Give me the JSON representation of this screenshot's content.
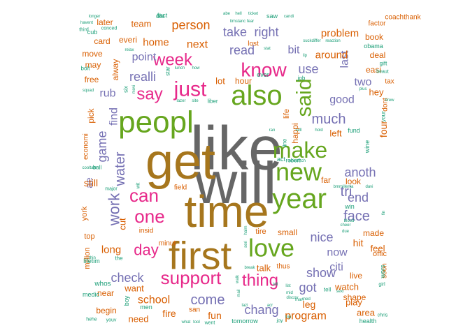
{
  "palette": {
    "gray": "#666666",
    "olive": "#a6761d",
    "green": "#66a61e",
    "magenta": "#e7298a",
    "purple": "#7570b3",
    "orange": "#d95f02",
    "teal": "#1b9e77"
  },
  "words": [
    {
      "text": "like",
      "color": "gray",
      "weight": 100
    },
    {
      "text": "will",
      "color": "gray",
      "weight": 98
    },
    {
      "text": "get",
      "color": "olive",
      "weight": 90
    },
    {
      "text": "time",
      "color": "olive",
      "weight": 86
    },
    {
      "text": "first",
      "color": "olive",
      "weight": 80
    },
    {
      "text": "peopl",
      "color": "green",
      "weight": 62
    },
    {
      "text": "year",
      "color": "green",
      "weight": 56
    },
    {
      "text": "also",
      "color": "green",
      "weight": 54
    },
    {
      "text": "new",
      "color": "green",
      "weight": 50
    },
    {
      "text": "love",
      "color": "green",
      "weight": 50
    },
    {
      "text": "make",
      "color": "green",
      "weight": 46
    },
    {
      "text": "said",
      "color": "green",
      "weight": 46
    },
    {
      "text": "just",
      "color": "magenta",
      "weight": 44
    },
    {
      "text": "know",
      "color": "magenta",
      "weight": 40
    },
    {
      "text": "support",
      "color": "magenta",
      "weight": 38
    },
    {
      "text": "can",
      "color": "magenta",
      "weight": 36
    },
    {
      "text": "one",
      "color": "magenta",
      "weight": 36
    },
    {
      "text": "thing",
      "color": "magenta",
      "weight": 34
    },
    {
      "text": "week",
      "color": "magenta",
      "weight": 32
    },
    {
      "text": "say",
      "color": "magenta",
      "weight": 32
    },
    {
      "text": "day",
      "color": "magenta",
      "weight": 28
    },
    {
      "text": "work",
      "color": "purple",
      "weight": 30
    },
    {
      "text": "water",
      "color": "purple",
      "weight": 26
    },
    {
      "text": "come",
      "color": "purple",
      "weight": 26
    },
    {
      "text": "face",
      "color": "purple",
      "weight": 26
    },
    {
      "text": "much",
      "color": "purple",
      "weight": 24
    },
    {
      "text": "check",
      "color": "purple",
      "weight": 24
    },
    {
      "text": "nice",
      "color": "purple",
      "weight": 24
    },
    {
      "text": "show",
      "color": "purple",
      "weight": 24
    },
    {
      "text": "anoth",
      "color": "purple",
      "weight": 24
    },
    {
      "text": "chang",
      "color": "purple",
      "weight": 22
    },
    {
      "text": "realli",
      "color": "purple",
      "weight": 22
    },
    {
      "text": "take",
      "color": "purple",
      "weight": 22
    },
    {
      "text": "right",
      "color": "purple",
      "weight": 22
    },
    {
      "text": "end",
      "color": "purple",
      "weight": 22
    },
    {
      "text": "read",
      "color": "purple",
      "weight": 22
    },
    {
      "text": "game",
      "color": "purple",
      "weight": 22
    },
    {
      "text": "tri",
      "color": "purple",
      "weight": 24
    },
    {
      "text": "got",
      "color": "purple",
      "weight": 22
    },
    {
      "text": "use",
      "color": "purple",
      "weight": 22
    },
    {
      "text": "good",
      "color": "purple",
      "weight": 22
    },
    {
      "text": "last",
      "color": "purple",
      "weight": 22
    },
    {
      "text": "point",
      "color": "purple",
      "weight": 20
    },
    {
      "text": "rub",
      "color": "purple",
      "weight": 20
    },
    {
      "text": "two",
      "color": "purple",
      "weight": 20
    },
    {
      "text": "find",
      "color": "purple",
      "weight": 18
    },
    {
      "text": "bit",
      "color": "purple",
      "weight": 18
    },
    {
      "text": "now",
      "color": "purple",
      "weight": 20
    },
    {
      "text": "citi",
      "color": "purple",
      "weight": 18
    },
    {
      "text": "ae",
      "color": "purple",
      "weight": 18
    },
    {
      "text": "person",
      "color": "orange",
      "weight": 22
    },
    {
      "text": "school",
      "color": "orange",
      "weight": 20
    },
    {
      "text": "program",
      "color": "orange",
      "weight": 20
    },
    {
      "text": "problem",
      "color": "orange",
      "weight": 18
    },
    {
      "text": "next",
      "color": "orange",
      "weight": 20
    },
    {
      "text": "home",
      "color": "orange",
      "weight": 20
    },
    {
      "text": "around",
      "color": "orange",
      "weight": 18
    },
    {
      "text": "long",
      "color": "orange",
      "weight": 18
    },
    {
      "text": "four",
      "color": "orange",
      "weight": 16
    },
    {
      "text": "fire",
      "color": "orange",
      "weight": 16
    },
    {
      "text": "fun",
      "color": "orange",
      "weight": 16
    },
    {
      "text": "leg",
      "color": "orange",
      "weight": 16
    },
    {
      "text": "hit",
      "color": "orange",
      "weight": 16
    },
    {
      "text": "still",
      "color": "orange",
      "weight": 16
    },
    {
      "text": "talk",
      "color": "orange",
      "weight": 16
    },
    {
      "text": "feel",
      "color": "orange",
      "weight": 16
    },
    {
      "text": "watch",
      "color": "orange",
      "weight": 14
    },
    {
      "text": "play",
      "color": "orange",
      "weight": 14
    },
    {
      "text": "area",
      "color": "orange",
      "weight": 14
    },
    {
      "text": "hey",
      "color": "orange",
      "weight": 14
    },
    {
      "text": "left",
      "color": "orange",
      "weight": 14
    },
    {
      "text": "cut",
      "color": "orange",
      "weight": 14
    },
    {
      "text": "want",
      "color": "orange",
      "weight": 14
    },
    {
      "text": "need",
      "color": "orange",
      "weight": 14
    },
    {
      "text": "team",
      "color": "orange",
      "weight": 14
    },
    {
      "text": "lot",
      "color": "orange",
      "weight": 14
    },
    {
      "text": "made",
      "color": "orange",
      "weight": 14
    },
    {
      "text": "shape",
      "color": "orange",
      "weight": 14
    },
    {
      "text": "look",
      "color": "orange",
      "weight": 14
    },
    {
      "text": "later",
      "color": "orange",
      "weight": 13
    },
    {
      "text": "begin",
      "color": "orange",
      "weight": 13
    },
    {
      "text": "near",
      "color": "orange",
      "weight": 13
    },
    {
      "text": "live",
      "color": "orange",
      "weight": 13
    },
    {
      "text": "book",
      "color": "orange",
      "weight": 13
    },
    {
      "text": "small",
      "color": "orange",
      "weight": 13
    },
    {
      "text": "free",
      "color": "orange",
      "weight": 12
    },
    {
      "text": "alway",
      "color": "orange",
      "weight": 12
    },
    {
      "text": "may",
      "color": "orange",
      "weight": 12
    },
    {
      "text": "move",
      "color": "orange",
      "weight": 12
    },
    {
      "text": "pick",
      "color": "orange",
      "weight": 12
    },
    {
      "text": "card",
      "color": "orange",
      "weight": 12
    },
    {
      "text": "everi",
      "color": "orange",
      "weight": 12
    },
    {
      "text": "deal",
      "color": "orange",
      "weight": 12
    },
    {
      "text": "easi",
      "color": "orange",
      "weight": 12
    },
    {
      "text": "happi",
      "color": "orange",
      "weight": 12
    },
    {
      "text": "far",
      "color": "orange",
      "weight": 12
    },
    {
      "text": "hour",
      "color": "orange",
      "weight": 12
    },
    {
      "text": "york",
      "color": "orange",
      "weight": 12
    },
    {
      "text": "top",
      "color": "orange",
      "weight": 12
    },
    {
      "text": "million",
      "color": "orange",
      "weight": 12
    },
    {
      "text": "offic",
      "color": "orange",
      "weight": 12
    },
    {
      "text": "tire",
      "color": "orange",
      "weight": 12
    },
    {
      "text": "life",
      "color": "orange",
      "weight": 12
    },
    {
      "text": "dont",
      "color": "orange",
      "weight": 11
    },
    {
      "text": "soon",
      "color": "orange",
      "weight": 11
    },
    {
      "text": "factor",
      "color": "orange",
      "weight": 11
    },
    {
      "text": "coachthank",
      "color": "orange",
      "weight": 11
    },
    {
      "text": "insid",
      "color": "orange",
      "weight": 11
    },
    {
      "text": "minut",
      "color": "orange",
      "weight": 11
    },
    {
      "text": "field",
      "color": "orange",
      "weight": 11
    },
    {
      "text": "lost",
      "color": "orange",
      "weight": 11
    },
    {
      "text": "thus",
      "color": "orange",
      "weight": 11
    },
    {
      "text": "tax",
      "color": "orange",
      "weight": 11
    },
    {
      "text": "san",
      "color": "orange",
      "weight": 11
    },
    {
      "text": "economi",
      "color": "orange",
      "weight": 11
    },
    {
      "text": "whos",
      "color": "teal",
      "weight": 11
    },
    {
      "text": "wors",
      "color": "teal",
      "weight": 10
    },
    {
      "text": "medic",
      "color": "teal",
      "weight": 9
    },
    {
      "text": "health",
      "color": "teal",
      "weight": 9
    },
    {
      "text": "tomorrow",
      "color": "teal",
      "weight": 9
    },
    {
      "text": "boy",
      "color": "teal",
      "weight": 9
    },
    {
      "text": "men",
      "color": "teal",
      "weight": 9
    },
    {
      "text": "fund",
      "color": "teal",
      "weight": 9
    },
    {
      "text": "wine",
      "color": "teal",
      "weight": 9
    },
    {
      "text": "obama",
      "color": "teal",
      "weight": 9
    },
    {
      "text": "cub",
      "color": "teal",
      "weight": 9
    },
    {
      "text": "lifetim",
      "color": "teal",
      "weight": 9
    },
    {
      "text": "saw",
      "color": "teal",
      "weight": 9
    },
    {
      "text": "die",
      "color": "teal",
      "weight": 9
    },
    {
      "text": "fact",
      "color": "teal",
      "weight": 9
    },
    {
      "text": "ever",
      "color": "teal",
      "weight": 9
    },
    {
      "text": "act",
      "color": "teal",
      "weight": 9
    },
    {
      "text": "win",
      "color": "teal",
      "weight": 9
    },
    {
      "text": "line",
      "color": "teal",
      "weight": 8
    },
    {
      "text": "job",
      "color": "teal",
      "weight": 8
    },
    {
      "text": "six",
      "color": "teal",
      "weight": 8
    },
    {
      "text": "tell",
      "color": "teal",
      "weight": 8
    },
    {
      "text": "star",
      "color": "teal",
      "weight": 8
    },
    {
      "text": "liber",
      "color": "teal",
      "weight": 8
    },
    {
      "text": "ball",
      "color": "teal",
      "weight": 8
    },
    {
      "text": "gift",
      "color": "teal",
      "weight": 8
    },
    {
      "text": "bolt",
      "color": "teal",
      "weight": 8
    },
    {
      "text": "the",
      "color": "teal",
      "weight": 8
    },
    {
      "text": "your",
      "color": "teal",
      "weight": 7
    },
    {
      "text": "robert",
      "color": "teal",
      "weight": 7
    },
    {
      "text": "went",
      "color": "teal",
      "weight": 7
    },
    {
      "text": "chris",
      "color": "teal",
      "weight": 6
    },
    {
      "text": "girl",
      "color": "teal",
      "weight": 6
    },
    {
      "text": "beaut",
      "color": "teal",
      "weight": 6
    },
    {
      "text": "conced",
      "color": "teal",
      "weight": 6
    },
    {
      "text": "major",
      "color": "teal",
      "weight": 6
    },
    {
      "text": "wit",
      "color": "teal",
      "weight": 6
    },
    {
      "text": "third",
      "color": "teal",
      "weight": 6
    },
    {
      "text": "joy",
      "color": "teal",
      "weight": 6
    },
    {
      "text": "youv",
      "color": "teal",
      "weight": 6
    },
    {
      "text": "hehe",
      "color": "teal",
      "weight": 6
    },
    {
      "text": "what",
      "color": "teal",
      "weight": 6
    },
    {
      "text": "tool",
      "color": "teal",
      "weight": 5
    },
    {
      "text": "how",
      "color": "teal",
      "weight": 5
    },
    {
      "text": "lunch",
      "color": "teal",
      "weight": 5
    },
    {
      "text": "squad",
      "color": "teal",
      "weight": 5
    },
    {
      "text": "longer",
      "color": "teal",
      "weight": 5
    },
    {
      "text": "sell",
      "color": "teal",
      "weight": 5
    },
    {
      "text": "ericafitch",
      "color": "teal",
      "weight": 5
    },
    {
      "text": "suckdiffer",
      "color": "teal",
      "weight": 5
    },
    {
      "text": "reaction",
      "color": "teal",
      "weight": 5
    },
    {
      "text": "brew",
      "color": "teal",
      "weight": 5
    },
    {
      "text": "med",
      "color": "teal",
      "weight": 5
    },
    {
      "text": "hold",
      "color": "teal",
      "weight": 5
    },
    {
      "text": "ran",
      "color": "teal",
      "weight": 5
    },
    {
      "text": "lip",
      "color": "teal",
      "weight": 5
    },
    {
      "text": "blood",
      "color": "teal",
      "weight": 5
    },
    {
      "text": "bmmillenia",
      "color": "teal",
      "weight": 5
    },
    {
      "text": "davi",
      "color": "teal",
      "weight": 5
    },
    {
      "text": "cooltate",
      "color": "teal",
      "weight": 5
    },
    {
      "text": "site",
      "color": "teal",
      "weight": 5
    },
    {
      "text": "lazer",
      "color": "teal",
      "weight": 5
    },
    {
      "text": "abe",
      "color": "teal",
      "weight": 5
    },
    {
      "text": "hell",
      "color": "teal",
      "weight": 5
    },
    {
      "text": "ticket",
      "color": "teal",
      "weight": 5
    },
    {
      "text": "timstanc",
      "color": "teal",
      "weight": 5
    },
    {
      "text": "fear",
      "color": "teal",
      "weight": 5
    },
    {
      "text": "havent",
      "color": "teal",
      "weight": 5
    },
    {
      "text": "thin",
      "color": "teal",
      "weight": 5
    },
    {
      "text": "candi",
      "color": "teal",
      "weight": 5
    },
    {
      "text": "sexi",
      "color": "teal",
      "weight": 5
    },
    {
      "text": "relax",
      "color": "teal",
      "weight": 5
    },
    {
      "text": "movi",
      "color": "teal",
      "weight": 5
    },
    {
      "text": "plus",
      "color": "teal",
      "weight": 5
    },
    {
      "text": "discov",
      "color": "teal",
      "weight": 5
    },
    {
      "text": "halm",
      "color": "teal",
      "weight": 5
    },
    {
      "text": "cheer",
      "color": "teal",
      "weight": 5
    },
    {
      "text": "due",
      "color": "teal",
      "weight": 5
    },
    {
      "text": "fin",
      "color": "teal",
      "weight": 5
    },
    {
      "text": "break",
      "color": "teal",
      "weight": 5
    },
    {
      "text": "seri",
      "color": "teal",
      "weight": 5
    },
    {
      "text": "list",
      "color": "teal",
      "weight": 5
    },
    {
      "text": "mid",
      "color": "teal",
      "weight": 5
    },
    {
      "text": "man",
      "color": "teal",
      "weight": 5
    },
    {
      "text": "lazi",
      "color": "teal",
      "weight": 5
    },
    {
      "text": "trip",
      "color": "teal",
      "weight": 5
    },
    {
      "text": "acr",
      "color": "teal",
      "weight": 5
    },
    {
      "text": "walk",
      "color": "teal",
      "weight": 5
    },
    {
      "text": "mail",
      "color": "teal",
      "weight": 5
    },
    {
      "text": "kill",
      "color": "teal",
      "weight": 5
    },
    {
      "text": "stat",
      "color": "teal",
      "weight": 5
    },
    {
      "text": "sit",
      "color": "teal",
      "weight": 5
    },
    {
      "text": "ovv",
      "color": "teal",
      "weight": 5
    }
  ]
}
